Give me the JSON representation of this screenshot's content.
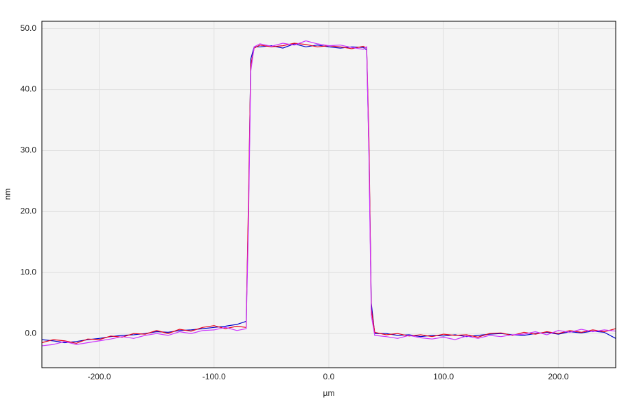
{
  "chart_data": {
    "type": "line",
    "x_label": "µm",
    "y_label": "nm",
    "x": [
      -250,
      -240,
      -230,
      -220,
      -210,
      -200,
      -190,
      -180,
      -170,
      -160,
      -150,
      -140,
      -130,
      -120,
      -110,
      -100,
      -90,
      -80,
      -72,
      -70,
      -68,
      -65,
      -60,
      -50,
      -40,
      -30,
      -20,
      -10,
      0,
      10,
      20,
      30,
      33,
      35,
      37,
      40,
      50,
      60,
      70,
      80,
      90,
      100,
      110,
      120,
      130,
      140,
      150,
      160,
      170,
      180,
      190,
      200,
      210,
      220,
      230,
      240,
      250
    ],
    "series": [
      {
        "color": "#0000cc",
        "values": [
          -1,
          -1.2,
          -1.5,
          -1.3,
          -1,
          -0.8,
          -0.5,
          -0.3,
          -0.2,
          0,
          0.3,
          0.2,
          0.5,
          0.6,
          0.8,
          1,
          1.2,
          1.5,
          2,
          20,
          45,
          47,
          47,
          47.2,
          46.8,
          47.5,
          47,
          47.3,
          47,
          46.8,
          47,
          46.9,
          46.5,
          30,
          5,
          0,
          0,
          -0.3,
          -0.2,
          -0.5,
          -0.3,
          -0.4,
          -0.2,
          -0.5,
          -0.3,
          -0.1,
          0,
          -0.2,
          -0.3,
          0,
          0.2,
          -0.1,
          0.3,
          0.1,
          0.4,
          0.2,
          -0.8
        ]
      },
      {
        "color": "#e8001c",
        "values": [
          -1.5,
          -1,
          -1.2,
          -1.6,
          -0.9,
          -1,
          -0.4,
          -0.6,
          0,
          -0.1,
          0.5,
          0,
          0.7,
          0.4,
          1,
          1.3,
          0.8,
          1.2,
          1,
          22,
          44,
          46.8,
          47.3,
          47,
          47.2,
          47.6,
          47.4,
          47,
          47.2,
          47,
          46.7,
          47.1,
          46.8,
          32,
          4,
          0.2,
          -0.2,
          0,
          -0.4,
          -0.2,
          -0.5,
          -0.1,
          -0.3,
          -0.2,
          -0.6,
          0,
          0.1,
          -0.3,
          0.2,
          -0.1,
          0.3,
          0,
          0.5,
          0.2,
          0.6,
          0.3,
          0.8
        ]
      },
      {
        "color": "#cc33ff",
        "values": [
          -2,
          -1.8,
          -1.3,
          -1.8,
          -1.5,
          -1.2,
          -0.9,
          -0.5,
          -0.8,
          -0.3,
          0,
          -0.3,
          0.3,
          0,
          0.5,
          0.6,
          1,
          0.5,
          0.8,
          18,
          43,
          47,
          47.5,
          47.1,
          47.6,
          47.3,
          48,
          47.5,
          47.2,
          47.3,
          46.9,
          46.6,
          47,
          29,
          3,
          -0.3,
          -0.5,
          -0.8,
          -0.3,
          -0.7,
          -0.9,
          -0.6,
          -1,
          -0.4,
          -0.8,
          -0.3,
          -0.5,
          -0.2,
          -0.1,
          0.3,
          -0.2,
          0.5,
          0.2,
          0.7,
          0.3,
          0.6,
          0.4
        ]
      }
    ],
    "xlim": [
      -250,
      250
    ],
    "ylim": [
      -5.6,
      51.2
    ],
    "xticks": [
      {
        "value": -200,
        "label": "-200.0"
      },
      {
        "value": -100,
        "label": "-100.0"
      },
      {
        "value": 0,
        "label": "0.0"
      },
      {
        "value": 100,
        "label": "100.0"
      },
      {
        "value": 200,
        "label": "200.0"
      }
    ],
    "yticks": [
      {
        "value": 0,
        "label": "0.0"
      },
      {
        "value": 10,
        "label": "10.0"
      },
      {
        "value": 20,
        "label": "20.0"
      },
      {
        "value": 30,
        "label": "30.0"
      },
      {
        "value": 40,
        "label": "40.0"
      },
      {
        "value": 50,
        "label": "50.0"
      }
    ],
    "grid": true
  }
}
